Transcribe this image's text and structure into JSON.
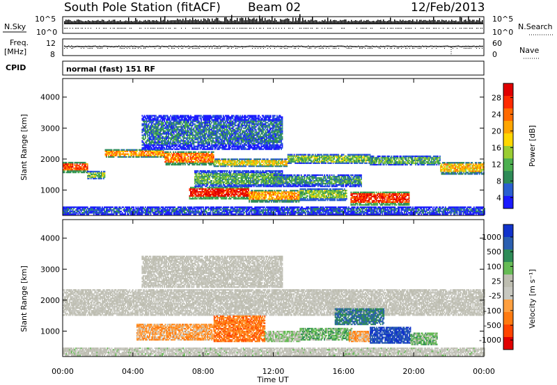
{
  "header": {
    "station": "South Pole Station (fitACF)",
    "beam": "Beam 02",
    "date": "12/Feb/2013"
  },
  "top_panels": {
    "nsky_label": "N.Sky",
    "nsearch_label": "N.Search",
    "nsky_ticks": [
      "10^5",
      "10^0"
    ],
    "nsearch_ticks": [
      "10^5",
      "10^0"
    ],
    "freq_label_line1": "Freq.",
    "freq_label_line2": "[MHz]",
    "freq_ticks": [
      "12",
      "8"
    ],
    "nave_label": "Nave",
    "nave_ticks": [
      "60",
      "0"
    ],
    "cpid_label": "CPID",
    "cpid_value": "normal (fast) 151 RF"
  },
  "colors": {
    "power": [
      "#1a1aff",
      "#2a5fd0",
      "#2e8b57",
      "#4caf50",
      "#9acd32",
      "#ffd700",
      "#ffa500",
      "#ff6a00",
      "#ff2a00",
      "#e00000"
    ],
    "velocity": [
      "#1133cc",
      "#2b5fb0",
      "#2e8b57",
      "#66bb55",
      "#bdbdb0",
      "#c8c8c0",
      "#ffa040",
      "#ff7a10",
      "#ff4400",
      "#e00000"
    ]
  },
  "chart_data": [
    {
      "type": "heatmap",
      "name": "power",
      "xlabel": "Time UT",
      "ylabel": "Slant Range [km]",
      "x_ticks": [
        "00:00",
        "04:00",
        "08:00",
        "12:00",
        "16:00",
        "20:00",
        "00:00"
      ],
      "xlim_hours": [
        0,
        24
      ],
      "ylim": [
        180,
        4600
      ],
      "y_ticks": [
        1000,
        2000,
        3000,
        4000
      ],
      "colorbar_label": "Power [dB]",
      "colorbar_ticks": [
        "28",
        "24",
        "20",
        "16",
        "12",
        "8",
        "4"
      ],
      "colorbar_range": [
        0,
        30
      ],
      "regions": [
        {
          "t": [
            0.0,
            1.4
          ],
          "r": [
            1550,
            1900
          ],
          "level": 24
        },
        {
          "t": [
            1.4,
            2.4
          ],
          "r": [
            1350,
            1600
          ],
          "level": 12
        },
        {
          "t": [
            2.4,
            5.8
          ],
          "r": [
            2050,
            2300
          ],
          "level": 20
        },
        {
          "t": [
            5.8,
            8.6
          ],
          "r": [
            1800,
            2250
          ],
          "level": 22
        },
        {
          "t": [
            8.6,
            12.8
          ],
          "r": [
            1750,
            2000
          ],
          "level": 16
        },
        {
          "t": [
            12.8,
            17.5
          ],
          "r": [
            1850,
            2150
          ],
          "level": 12
        },
        {
          "t": [
            17.5,
            21.5
          ],
          "r": [
            1800,
            2100
          ],
          "level": 10
        },
        {
          "t": [
            21.5,
            24.0
          ],
          "r": [
            1500,
            1900
          ],
          "level": 18
        },
        {
          "t": [
            7.2,
            10.6
          ],
          "r": [
            700,
            1100
          ],
          "level": 28
        },
        {
          "t": [
            10.6,
            13.5
          ],
          "r": [
            600,
            1000
          ],
          "level": 20
        },
        {
          "t": [
            13.5,
            16.2
          ],
          "r": [
            650,
            1050
          ],
          "level": 12
        },
        {
          "t": [
            16.4,
            19.7
          ],
          "r": [
            500,
            950
          ],
          "level": 26
        },
        {
          "t": [
            7.5,
            12.5
          ],
          "r": [
            1100,
            1600
          ],
          "level": 10
        },
        {
          "t": [
            12.0,
            17.0
          ],
          "r": [
            1100,
            1500
          ],
          "level": 8
        },
        {
          "t": [
            4.5,
            12.5
          ],
          "r": [
            2300,
            3400
          ],
          "level": 6
        },
        {
          "t": [
            0.0,
            24.0
          ],
          "r": [
            200,
            450
          ],
          "level": 4
        }
      ]
    },
    {
      "type": "heatmap",
      "name": "velocity",
      "xlabel": "Time UT",
      "ylabel": "Slant Range [km]",
      "x_ticks": [
        "00:00",
        "04:00",
        "08:00",
        "12:00",
        "16:00",
        "20:00",
        "00:00"
      ],
      "xlim_hours": [
        0,
        24
      ],
      "ylim": [
        180,
        4600
      ],
      "y_ticks": [
        1000,
        2000,
        3000,
        4000
      ],
      "colorbar_label": "Velocity [m s⁻¹]",
      "colorbar_ticks": [
        "1000",
        "500",
        "100",
        "25",
        "-25",
        "-100",
        "-500",
        "-1000"
      ],
      "colorbar_range": [
        -1000,
        1000
      ],
      "regions": [
        {
          "t": [
            0.0,
            24.0
          ],
          "r": [
            1500,
            2350
          ],
          "level": 0
        },
        {
          "t": [
            4.2,
            8.6
          ],
          "r": [
            700,
            1200
          ],
          "level": -300
        },
        {
          "t": [
            8.6,
            11.5
          ],
          "r": [
            650,
            1500
          ],
          "level": -500
        },
        {
          "t": [
            11.5,
            13.5
          ],
          "r": [
            650,
            1000
          ],
          "level": 200
        },
        {
          "t": [
            13.5,
            16.5
          ],
          "r": [
            700,
            1100
          ],
          "level": 300
        },
        {
          "t": [
            16.3,
            17.5
          ],
          "r": [
            650,
            1000
          ],
          "level": -300
        },
        {
          "t": [
            17.5,
            19.8
          ],
          "r": [
            600,
            1100
          ],
          "level": 800
        },
        {
          "t": [
            19.8,
            21.3
          ],
          "r": [
            550,
            950
          ],
          "level": 300
        },
        {
          "t": [
            15.5,
            18.3
          ],
          "r": [
            1200,
            1700
          ],
          "level": 600
        },
        {
          "t": [
            4.5,
            12.5
          ],
          "r": [
            2400,
            3400
          ],
          "level": 0
        },
        {
          "t": [
            0.0,
            24.0
          ],
          "r": [
            200,
            450
          ],
          "level": 30
        }
      ]
    }
  ]
}
